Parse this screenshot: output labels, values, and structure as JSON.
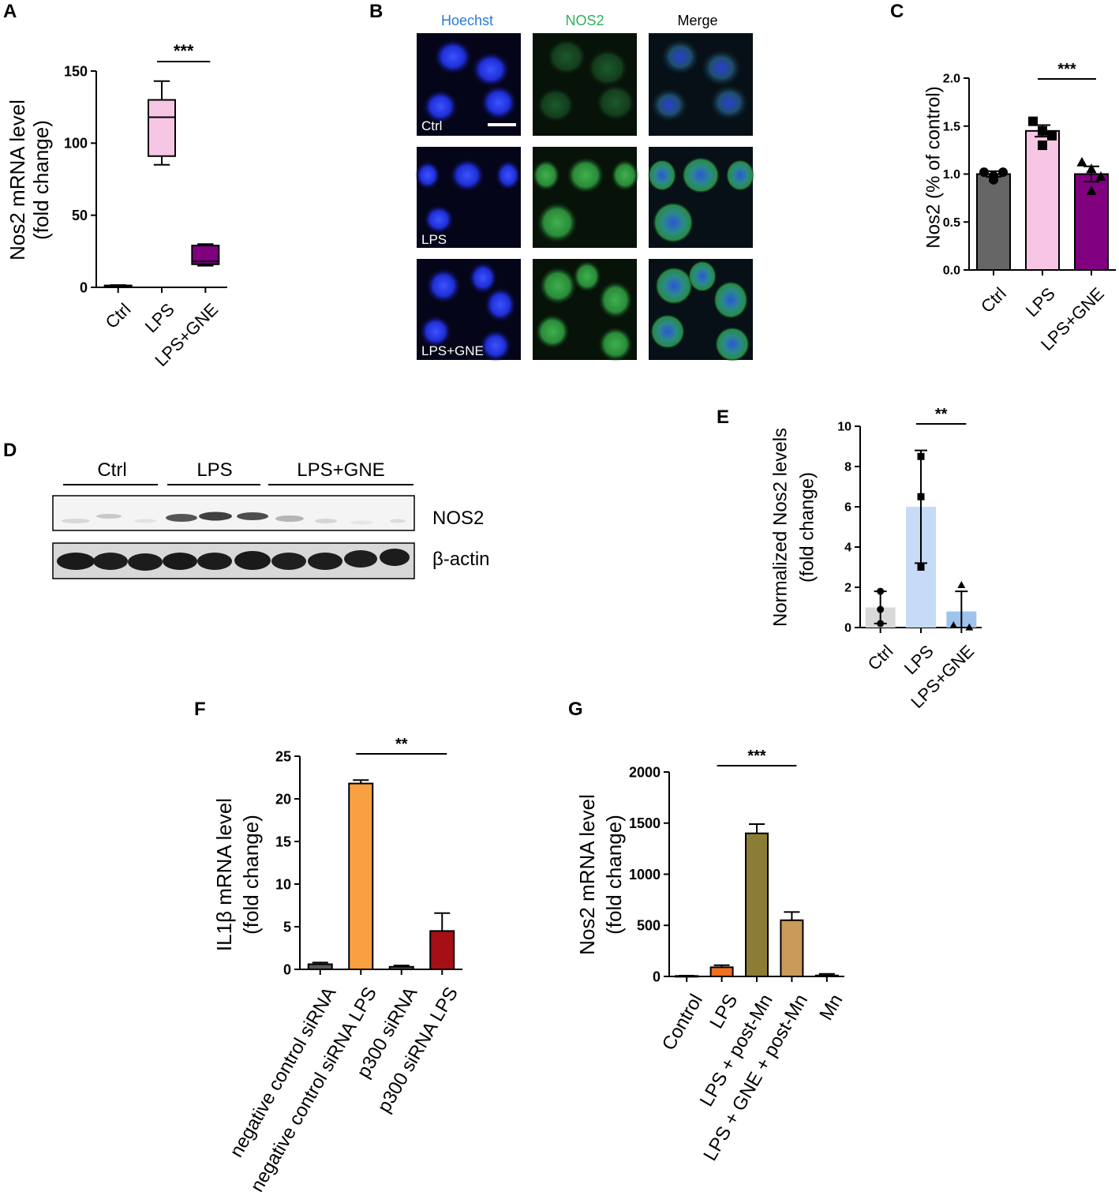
{
  "panel_letters": {
    "A": "A",
    "B": "B",
    "C": "C",
    "D": "D",
    "E": "E",
    "F": "F",
    "G": "G"
  },
  "colors": {
    "ctrl_gray": "#666666",
    "lps_pink": "#f7c6e4",
    "gne_purple": "#800080",
    "e_ctrl": "#d9d9d9",
    "e_lps": "#c6dbf5",
    "e_gne": "#9ec4ee",
    "f_neg": "#595959",
    "f_neglps": "#f9a040",
    "f_p300": "#595959",
    "f_p300lps": "#a50f15",
    "g_control": "#555555",
    "g_lps": "#f07020",
    "g_postmn": "#8b7d35",
    "g_gne": "#c99a5a",
    "g_mn": "#555555",
    "hoechst": "#2a7bd4",
    "nos2": "#2fb15a"
  },
  "microscopy": {
    "columns": [
      "Hoechst",
      "NOS2",
      "Merge"
    ],
    "rows": [
      "Ctrl",
      "LPS",
      "LPS+GNE"
    ]
  },
  "blot": {
    "groups": [
      "Ctrl",
      "LPS",
      "LPS+GNE"
    ],
    "bands": [
      "NOS2",
      "β-actin"
    ]
  },
  "chart_data": [
    {
      "panel": "A",
      "type": "box",
      "ylabel": [
        "Nos2 mRNA level",
        "(fold change)"
      ],
      "categories": [
        "Ctrl",
        "LPS",
        "LPS+GNE"
      ],
      "ylim": [
        0,
        150
      ],
      "yticks": [
        0,
        50,
        100,
        150
      ],
      "boxes": [
        {
          "min": 0.5,
          "q1": 0.8,
          "median": 1.0,
          "q3": 1.3,
          "max": 1.6
        },
        {
          "min": 85,
          "q1": 91,
          "median": 118,
          "q3": 130,
          "max": 143
        },
        {
          "min": 15,
          "q1": 16,
          "median": 18,
          "q3": 29,
          "max": 30
        }
      ],
      "significance": {
        "from": 1,
        "to": 2,
        "label": "***"
      }
    },
    {
      "panel": "C",
      "type": "bar",
      "ylabel": "Nos2 (% of control)",
      "categories": [
        "Ctrl",
        "LPS",
        "LPS+GNE"
      ],
      "ylim": [
        0,
        2.0
      ],
      "yticks": [
        "0.0",
        "0.5",
        "1.0",
        "1.5",
        "2.0"
      ],
      "values": [
        1.0,
        1.45,
        1.0
      ],
      "errors": [
        0.03,
        0.06,
        0.08
      ],
      "points": [
        [
          1.02,
          0.98,
          1.02,
          0.94
        ],
        [
          1.55,
          1.45,
          1.4,
          1.3
        ],
        [
          1.12,
          1.05,
          0.97,
          0.82
        ]
      ],
      "marker": [
        "circle",
        "square",
        "triangle"
      ],
      "significance": {
        "from": 1,
        "to": 2,
        "label": "***"
      }
    },
    {
      "panel": "E",
      "type": "bar",
      "ylabel": [
        "Normalized Nos2 levels",
        "(fold change)"
      ],
      "categories": [
        "Ctrl",
        "LPS",
        "LPS+GNE"
      ],
      "ylim": [
        0,
        10
      ],
      "yticks": [
        0,
        2,
        4,
        6,
        8,
        10
      ],
      "values": [
        1.0,
        6.0,
        0.8
      ],
      "errors": [
        0.8,
        2.8,
        1.0
      ],
      "points": [
        [
          1.8,
          0.9,
          0.2
        ],
        [
          8.5,
          6.5,
          3.0
        ],
        [
          2.1,
          0.1,
          0.0
        ]
      ],
      "marker": [
        "circle",
        "square",
        "triangle"
      ],
      "significance": {
        "from": 1,
        "to": 2,
        "label": "**"
      }
    },
    {
      "panel": "F",
      "type": "bar",
      "ylabel": [
        "IL1β mRNA level",
        "(fold change)"
      ],
      "categories": [
        "negative control siRNA",
        "negative control siRNA LPS",
        "p300 siRNA",
        "p300 siRNA LPS"
      ],
      "ylim": [
        0,
        25
      ],
      "yticks": [
        0,
        5,
        10,
        15,
        20,
        25
      ],
      "values": [
        0.6,
        21.8,
        0.3,
        4.5
      ],
      "errors": [
        0.2,
        0.4,
        0.15,
        2.1
      ],
      "significance": {
        "from": 1,
        "to": 3,
        "label": "**"
      }
    },
    {
      "panel": "G",
      "type": "bar",
      "ylabel": [
        "Nos2 mRNA level",
        "(fold change)"
      ],
      "categories": [
        "Control",
        "LPS",
        "LPS + post-Mn",
        "LPS + GNE + post-Mn",
        "Mn"
      ],
      "ylim": [
        0,
        2000
      ],
      "yticks": [
        0,
        500,
        1000,
        1500,
        2000
      ],
      "values": [
        5,
        90,
        1400,
        550,
        10
      ],
      "errors": [
        3,
        20,
        90,
        80,
        15
      ],
      "significance": {
        "from": 1,
        "to": 3,
        "label": "***"
      }
    }
  ]
}
